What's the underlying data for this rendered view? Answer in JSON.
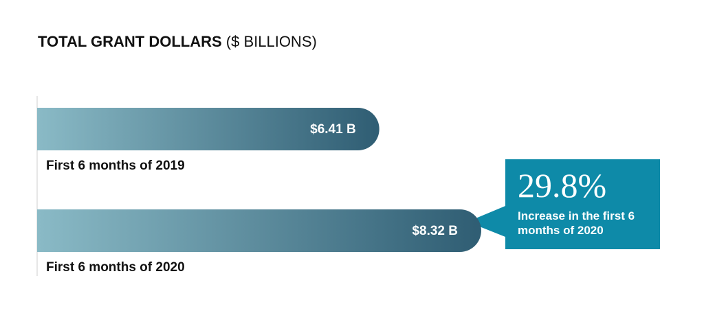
{
  "chart_data": {
    "type": "bar",
    "orientation": "horizontal",
    "title": "TOTAL GRANT DOLLARS",
    "unit": "($ BILLIONS)",
    "categories": [
      "First 6 months of 2019",
      "First 6 months of 2020"
    ],
    "values": [
      6.41,
      8.32
    ],
    "value_labels": [
      "$6.41 B",
      "$8.32 B"
    ],
    "colors": [
      "#8abac6",
      "#2f5d73"
    ],
    "annotation": {
      "value": "29.8%",
      "text": "Increase in the first 6 months of 2020",
      "color": "#0e8aa8"
    }
  }
}
